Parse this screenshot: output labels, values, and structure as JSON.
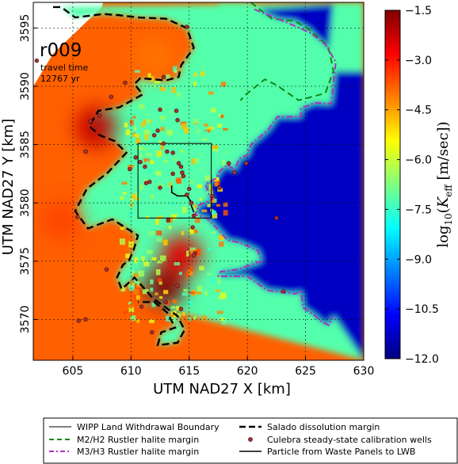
{
  "figure": {
    "run_label": "r009",
    "travel_time_label": "travel time",
    "travel_time_value": "12767 yr"
  },
  "colorbar": {
    "label_html": "log<sub>10</sub>(K<sub>eff</sub> [m/sec])",
    "min": -12.0,
    "max": -1.5,
    "ticks": [
      "-1.5",
      "-3.0",
      "-4.5",
      "-6.0",
      "-7.5",
      "-9.0",
      "-10.5",
      "-12.0"
    ],
    "colors": [
      "#00007f",
      "#0000ff",
      "#007fff",
      "#00ffff",
      "#7fff7f",
      "#ffff00",
      "#ff7f00",
      "#ff0000",
      "#7f0000"
    ]
  },
  "legend": {
    "items": [
      {
        "label": "WIPP Land Withdrawal Boundary",
        "color": "#000000",
        "style": "solid-thin"
      },
      {
        "label": "Salado dissolution margin",
        "color": "#000000",
        "style": "dashed-thick"
      },
      {
        "label": "M2/H2 Rustler halite margin",
        "color": "#118811",
        "style": "dashed"
      },
      {
        "label": "Culebra steady-state calibration wells",
        "color": "#a83232",
        "style": "dot"
      },
      {
        "label": "M3/H3 Rustler halite margin",
        "color": "#aa33bb",
        "style": "dashdot"
      },
      {
        "label": "Particle from Waste Panels to LWB",
        "color": "#000000",
        "style": "solid"
      }
    ]
  },
  "chart_data": {
    "type": "heatmap",
    "title": "",
    "xlabel": "UTM NAD27 X [km]",
    "ylabel": "UTM NAD27 Y [km]",
    "xlim": [
      601.6,
      630.0
    ],
    "ylim": [
      3566.5,
      3597.2
    ],
    "xticks": [
      605,
      610,
      615,
      620,
      625,
      630
    ],
    "yticks": [
      3570,
      3575,
      3580,
      3585,
      3590,
      3595
    ],
    "xtick_labels": [
      "605",
      "610",
      "615",
      "620",
      "625",
      "630"
    ],
    "ytick_labels": [
      "3570",
      "3575",
      "3580",
      "3585",
      "3590",
      "3595"
    ],
    "grid": true,
    "value_label": "log10(K_eff [m/sec])",
    "value_range": [
      -12.0,
      -1.5
    ],
    "regions": {
      "background_west_value": -3.8,
      "central_value": -7.2,
      "east_low_value": -11.3,
      "hot_spots": [
        {
          "x": 607.0,
          "y": 3586.5,
          "value": -2.2
        },
        {
          "x": 612.9,
          "y": 3572.8,
          "value": -1.6
        },
        {
          "x": 614.3,
          "y": 3575.5,
          "value": -2.5
        },
        {
          "x": 604.0,
          "y": 3578.5,
          "value": -3.5
        },
        {
          "x": 612.0,
          "y": 3592.5,
          "value": -4.0
        }
      ]
    },
    "wlb_boundary": {
      "x": [
        610.6,
        616.9
      ],
      "y": [
        3578.7,
        3585.1
      ]
    },
    "salado_margin": {
      "x": [
        603.3,
        604.0,
        605.2,
        607.6,
        609.0,
        610.6,
        613.0,
        614.8,
        615.4,
        614.3,
        614.1,
        613.0,
        610.8,
        610.3,
        611.0,
        609.0,
        607.2,
        606.4,
        607.3,
        608.6,
        609.6,
        608.0,
        606.2,
        605.2,
        606.3,
        608.4,
        610.6,
        610.2,
        609.8,
        609.3,
        608.8,
        609.2,
        610.3,
        611.9,
        614.0,
        614.6,
        614.0,
        612.3,
        612.6,
        613.8,
        613.1,
        612.0,
        611.2,
        610.6
      ],
      "y": [
        3596.8,
        3596.8,
        3595.9,
        3596.2,
        3596.1,
        3595.9,
        3595.8,
        3595.0,
        3593.3,
        3591.8,
        3590.8,
        3590.5,
        3590.7,
        3590.2,
        3589.3,
        3588.2,
        3587.9,
        3586.6,
        3585.8,
        3585.3,
        3584.3,
        3582.6,
        3581.2,
        3579.3,
        3577.8,
        3578.6,
        3577.2,
        3575.9,
        3575.0,
        3574.7,
        3573.6,
        3572.6,
        3573.6,
        3571.8,
        3570.3,
        3569.1,
        3568.0,
        3567.8,
        3568.9,
        3569.3,
        3570.6,
        3571.5,
        3571.5,
        3571.5
      ]
    },
    "m2h2_margin": {
      "x": [
        620.3,
        622.1,
        624.1,
        625.4,
        626.9,
        627.1,
        627.4,
        626.7,
        624.4,
        622.5,
        621.5,
        620.0,
        619.4
      ],
      "y": [
        3597.2,
        3595.8,
        3595.6,
        3594.8,
        3593.5,
        3592.8,
        3591.3,
        3589.4,
        3588.8,
        3590.1,
        3590.6,
        3589.4,
        3588.8
      ]
    },
    "m3h3_margin": {
      "x": [
        620.6,
        623.1,
        625.4,
        626.7,
        627.6,
        627.2,
        625.8,
        624.6,
        624.6,
        622.6,
        621.8,
        620.3,
        620.0,
        619.3,
        618.9,
        618.3,
        617.6,
        617.3,
        616.4,
        616.7,
        617.0,
        615.8,
        615.5,
        616.5,
        617.4,
        618.3,
        619.3,
        620.9,
        621.2,
        620.6,
        619.2,
        617.7,
        617.5,
        620.0,
        621.7,
        624.1,
        624.6,
        624.8,
        625.7,
        626.4,
        627.0,
        627.4
      ],
      "y": [
        3596.6,
        3595.6,
        3594.6,
        3593.6,
        3592.1,
        3588.5,
        3588.6,
        3588.1,
        3587.4,
        3587.4,
        3586.3,
        3585.0,
        3584.1,
        3583.8,
        3582.8,
        3583.3,
        3582.7,
        3582.1,
        3581.6,
        3580.7,
        3580.3,
        3579.8,
        3579.0,
        3578.7,
        3577.8,
        3576.8,
        3576.6,
        3575.9,
        3575.0,
        3574.8,
        3574.3,
        3574.1,
        3573.7,
        3573.7,
        3572.5,
        3572.2,
        3572.4,
        3571.0,
        3570.4,
        3569.8,
        3569.5,
        3570.3
      ]
    },
    "particle_path": {
      "x": [
        613.5,
        613.5,
        614.0,
        614.8,
        615.1,
        615.2,
        615.4
      ],
      "y": [
        3581.5,
        3580.9,
        3580.6,
        3580.6,
        3580.2,
        3579.7,
        3579.2
      ]
    },
    "wells": {
      "x": [
        601.9,
        605.4,
        606.1,
        606.5,
        607.3,
        607.9,
        608.3,
        609.9,
        610.4,
        610.8,
        611.6,
        612.0,
        612.3,
        612.8,
        613.1,
        613.6,
        614.1,
        614.3,
        614.5,
        614.8,
        615.0,
        615.2,
        615.5,
        617.0,
        617.6,
        618.4,
        618.9,
        619.9,
        622.5,
        623.1,
        614.8,
        612.8,
        614.0,
        613.9,
        612.5,
        611.2,
        611.3,
        612.5,
        613.6,
        614.4,
        613.2,
        611.8,
        613.0,
        614.3,
        610.9,
        615.4,
        615.3,
        615.4,
        614.0,
        609.5,
        606.1,
        605.5
      ],
      "y": [
        3592.2,
        3578.8,
        3584.4,
        3587.0,
        3587.5,
        3574.3,
        3589.1,
        3582.9,
        3583.9,
        3583.5,
        3581.8,
        3585.8,
        3586.2,
        3585.1,
        3584.4,
        3584.3,
        3583.4,
        3583.1,
        3582.3,
        3580.7,
        3581.2,
        3580.0,
        3575.7,
        3580.6,
        3581.3,
        3583.4,
        3582.6,
        3583.4,
        3578.7,
        3572.4,
        3595.1,
        3590.8,
        3587.1,
        3587.9,
        3588.0,
        3583.1,
        3581.7,
        3581.3,
        3582.5,
        3582.6,
        3578.5,
        3568.9,
        3571.5,
        3570.9,
        3571.1,
        3578.9,
        3577.9,
        3575.5,
        3572.9,
        3590.3,
        3570.0,
        3569.9
      ]
    }
  }
}
